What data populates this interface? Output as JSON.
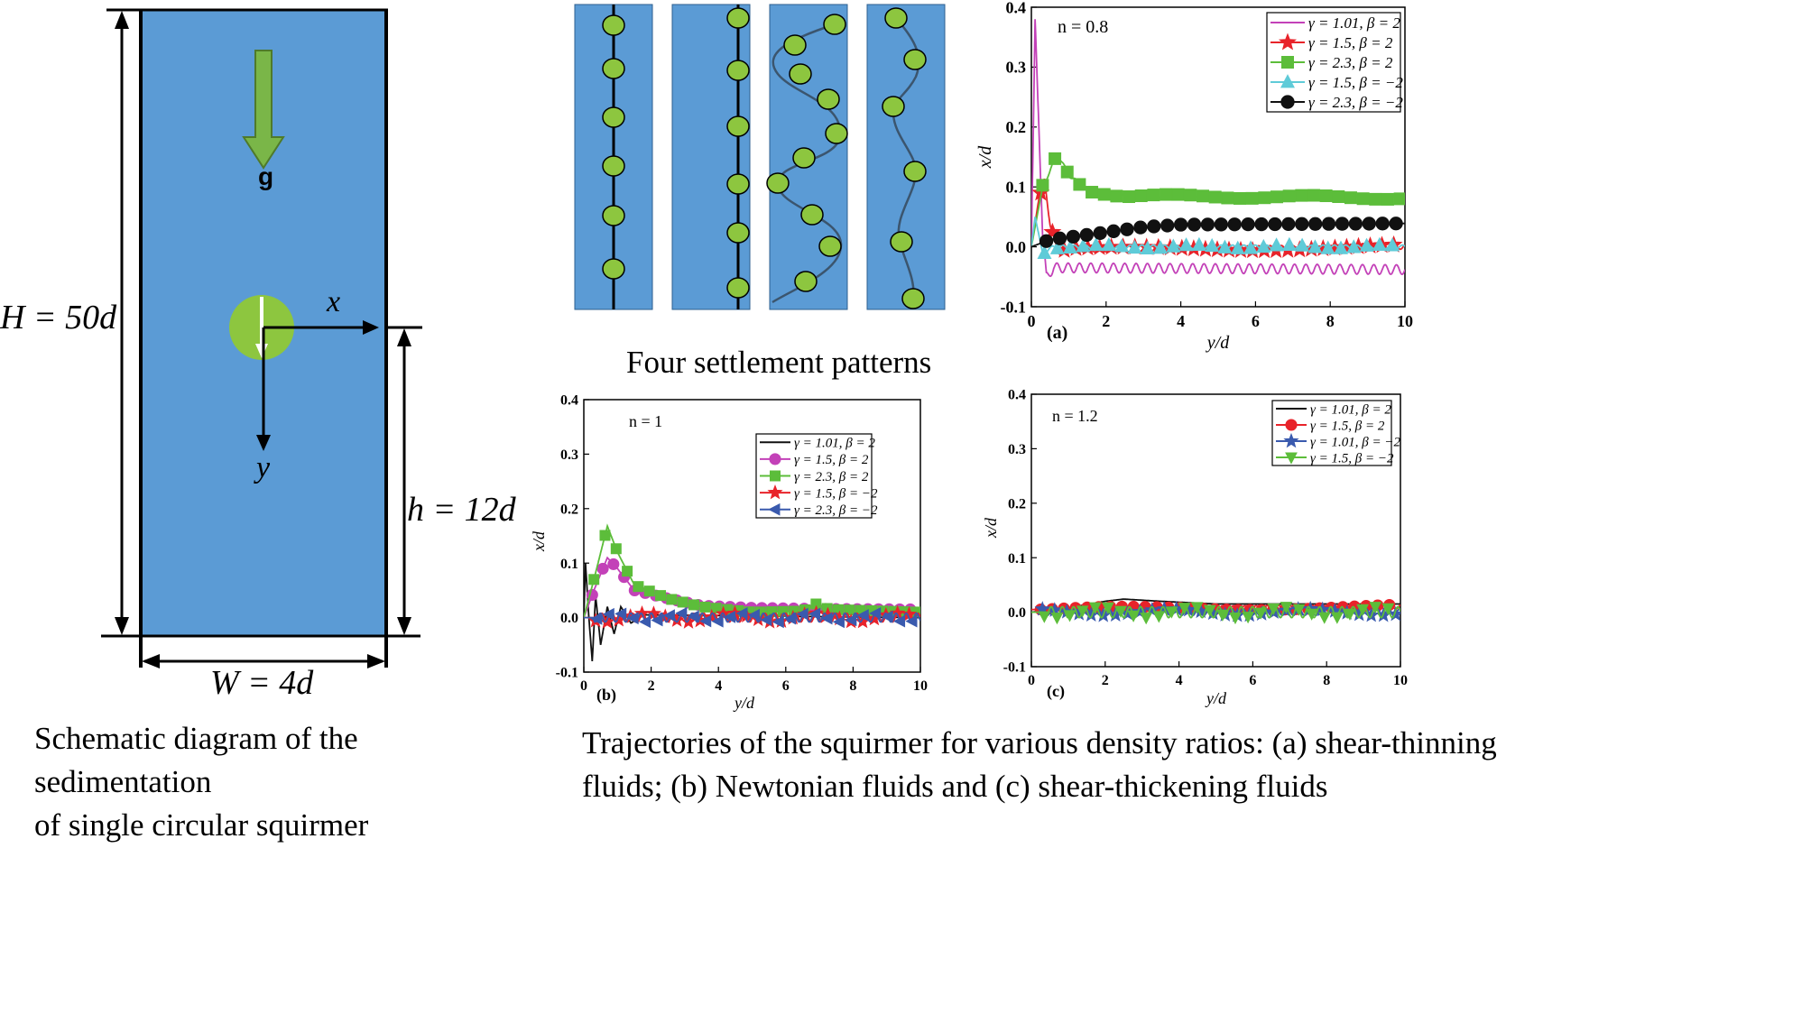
{
  "schematic": {
    "height_label": "H = 50d",
    "width_label": "W = 4d",
    "release_label": "h = 12d",
    "gravity_label": "g",
    "x_label": "x",
    "y_label": "y",
    "caption": "Schematic diagram of the sedimentation\nof single circular squirmer",
    "colors": {
      "fluid": "#5b9bd5",
      "particle": "#8dc63f",
      "arrow": "#7ab648"
    }
  },
  "patterns": {
    "caption": "Four settlement patterns"
  },
  "trajectories_caption": "Trajectories of the squirmer for various density ratios: (a) shear-thinning\nfluids; (b) Newtonian fluids and (c) shear-thickening fluids",
  "chart_data": [
    {
      "type": "line",
      "panel": "(a)",
      "annotation": "n = 0.8",
      "xlabel": "y/d",
      "ylabel": "x/d",
      "xlim": [
        0,
        10
      ],
      "ylim": [
        -0.1,
        0.4
      ],
      "xticks": [
        "0",
        "2",
        "4",
        "6",
        "8",
        "10"
      ],
      "yticks": [
        "-0.1",
        "0.0",
        "0.1",
        "0.2",
        "0.3",
        "0.4"
      ],
      "legend_position": "top-right",
      "series": [
        {
          "name": "γ = 1.01, β = 2",
          "color": "#c341b8",
          "marker": "none",
          "points": [
            [
              0,
              0
            ],
            [
              0.1,
              0.38
            ],
            [
              0.2,
              0.2
            ],
            [
              0.3,
              0.02
            ],
            [
              0.4,
              -0.05
            ],
            [
              0.6,
              -0.035
            ],
            [
              10,
              -0.038
            ]
          ],
          "osc": 0.008
        },
        {
          "name": "γ = 1.5,  β = 2",
          "color": "#e8232a",
          "marker": "star",
          "points": [
            [
              0,
              0
            ],
            [
              0.2,
              0.08
            ],
            [
              0.35,
              0.11
            ],
            [
              0.5,
              0.04
            ],
            [
              0.7,
              -0.01
            ],
            [
              1.0,
              -0.005
            ],
            [
              10,
              0
            ]
          ],
          "osc": 0.004
        },
        {
          "name": "γ = 2.3,  β = 2",
          "color": "#5cbd3a",
          "marker": "square",
          "points": [
            [
              0,
              0
            ],
            [
              0.3,
              0.1
            ],
            [
              0.7,
              0.155
            ],
            [
              1.0,
              0.12
            ],
            [
              1.5,
              0.095
            ],
            [
              2.5,
              0.085
            ],
            [
              10,
              0.082
            ]
          ],
          "osc": 0.003
        },
        {
          "name": "γ = 1.5,  β = −2",
          "color": "#5fcbd8",
          "marker": "triangle",
          "points": [
            [
              0,
              0
            ],
            [
              0.1,
              0.05
            ],
            [
              0.3,
              -0.01
            ],
            [
              0.6,
              0
            ],
            [
              10,
              0
            ]
          ],
          "osc": 0.003
        },
        {
          "name": "γ = 2.3,  β = −2",
          "color": "#111111",
          "marker": "circle",
          "points": [
            [
              0,
              0
            ],
            [
              0.5,
              0.012
            ],
            [
              1.5,
              0.02
            ],
            [
              3,
              0.033
            ],
            [
              4,
              0.037
            ],
            [
              10,
              0.039
            ]
          ],
          "osc": 0
        }
      ]
    },
    {
      "type": "line",
      "panel": "(b)",
      "annotation": "n = 1",
      "xlabel": "y/d",
      "ylabel": "x/d",
      "xlim": [
        0,
        10
      ],
      "ylim": [
        -0.1,
        0.4
      ],
      "xticks": [
        "0",
        "2",
        "4",
        "6",
        "8",
        "10"
      ],
      "yticks": [
        "-0.1",
        "0.0",
        "0.1",
        "0.2",
        "0.3",
        "0.4"
      ],
      "legend_position": "center-right",
      "series": [
        {
          "name": "γ = 1.01, β = 2",
          "color": "#111111",
          "marker": "none",
          "points": [
            [
              0,
              0
            ],
            [
              0.05,
              0.1
            ],
            [
              0.15,
              0
            ],
            [
              0.25,
              -0.08
            ],
            [
              0.35,
              0.04
            ],
            [
              0.5,
              -0.05
            ],
            [
              0.7,
              0.02
            ],
            [
              0.9,
              -0.03
            ],
            [
              1.1,
              0.02
            ],
            [
              1.4,
              -0.01
            ],
            [
              1.8,
              0.005
            ],
            [
              10,
              0
            ]
          ],
          "osc": 0
        },
        {
          "name": "γ = 1.5,  β = 2",
          "color": "#c341b8",
          "marker": "circle",
          "points": [
            [
              0,
              0
            ],
            [
              0.3,
              0.05
            ],
            [
              0.7,
              0.11
            ],
            [
              1.0,
              0.09
            ],
            [
              1.5,
              0.05
            ],
            [
              2.5,
              0.035
            ],
            [
              3.5,
              0.022
            ],
            [
              5,
              0.018
            ],
            [
              7,
              0.016
            ],
            [
              10,
              0.015
            ]
          ],
          "osc": 0
        },
        {
          "name": "γ = 2.3,  β = 2",
          "color": "#5cbd3a",
          "marker": "square",
          "points": [
            [
              0,
              0
            ],
            [
              0.3,
              0.07
            ],
            [
              0.7,
              0.168
            ],
            [
              1.0,
              0.12
            ],
            [
              1.5,
              0.06
            ],
            [
              2.5,
              0.035
            ],
            [
              3.5,
              0.02
            ],
            [
              5,
              0.01
            ],
            [
              6.5,
              0.012
            ],
            [
              6.9,
              0.025
            ],
            [
              7.3,
              0.015
            ],
            [
              10,
              0.01
            ]
          ],
          "osc": 0
        },
        {
          "name": "γ = 1.5,  β = −2",
          "color": "#e8232a",
          "marker": "star",
          "points": [
            [
              0,
              0
            ],
            [
              10,
              0
            ]
          ],
          "osc": 0.008
        },
        {
          "name": "γ = 2.3,  β = −2",
          "color": "#3a5aae",
          "marker": "triangle-left",
          "points": [
            [
              0,
              0
            ],
            [
              10,
              0
            ]
          ],
          "osc": 0.008
        }
      ]
    },
    {
      "type": "line",
      "panel": "(c)",
      "annotation": "n = 1.2",
      "xlabel": "y/d",
      "ylabel": "x/d",
      "xlim": [
        0,
        10
      ],
      "ylim": [
        -0.1,
        0.4
      ],
      "xticks": [
        "0",
        "2",
        "4",
        "6",
        "8",
        "10"
      ],
      "yticks": [
        "-0.1",
        "0.0",
        "0.1",
        "0.2",
        "0.3",
        "0.4"
      ],
      "legend_position": "top-right",
      "series": [
        {
          "name": "γ = 1.01, β = 2",
          "color": "#111111",
          "marker": "none",
          "points": [
            [
              0,
              0
            ],
            [
              1,
              0.008
            ],
            [
              2,
              0.02
            ],
            [
              2.5,
              0.024
            ],
            [
              3.5,
              0.02
            ],
            [
              5,
              0.015
            ],
            [
              10,
              0.015
            ]
          ],
          "osc": 0
        },
        {
          "name": "γ = 1.5,  β = 2",
          "color": "#e8232a",
          "marker": "circle",
          "points": [
            [
              0,
              0.005
            ],
            [
              10,
              0.01
            ]
          ],
          "osc": 0.004
        },
        {
          "name": "γ = 1.01, β = −2",
          "color": "#3a5aae",
          "marker": "star",
          "points": [
            [
              0,
              0
            ],
            [
              10,
              0
            ]
          ],
          "osc": 0.006
        },
        {
          "name": "γ = 1.5,  β = −2",
          "color": "#5cbd3a",
          "marker": "triangle-down",
          "points": [
            [
              0,
              0
            ],
            [
              10,
              0
            ]
          ],
          "osc": 0.01
        }
      ]
    }
  ]
}
